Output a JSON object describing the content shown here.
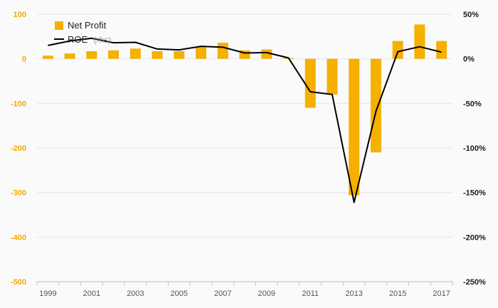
{
  "chart_data": {
    "type": "bar",
    "x": [
      1999,
      2000,
      2001,
      2002,
      2003,
      2004,
      2005,
      2006,
      2007,
      2008,
      2009,
      2010,
      2011,
      2012,
      2013,
      2014,
      2015,
      2016,
      2017
    ],
    "series": [
      {
        "name": "Net Profit",
        "type": "bar",
        "axis": "left",
        "color": "#f5b000",
        "values": [
          7,
          12,
          17,
          19,
          23,
          17,
          17,
          26,
          36,
          19,
          21,
          2,
          -110,
          -80,
          -306,
          -210,
          40,
          77,
          40
        ]
      },
      {
        "name": "ROE",
        "name_suffix": "(rhs)",
        "type": "line",
        "axis": "right",
        "color": "#000000",
        "values": [
          15,
          20,
          23,
          18,
          18.5,
          11,
          10,
          14,
          13,
          6.5,
          7,
          1,
          -37,
          -40,
          -161,
          -59,
          8,
          13.5,
          7.5
        ]
      }
    ],
    "left_axis": {
      "ylim": [
        -500,
        100
      ],
      "ticks": [
        100,
        0,
        -100,
        -200,
        -300,
        -400,
        -500
      ],
      "tick_labels": [
        "100",
        "0",
        "-100",
        "-200",
        "-300",
        "-400",
        "-500"
      ],
      "color": "#f5a800"
    },
    "right_axis": {
      "ylim": [
        -250,
        50
      ],
      "ticks": [
        50,
        0,
        -50,
        -100,
        -150,
        -200,
        -250
      ],
      "tick_labels": [
        "50%",
        "0%",
        "-50%",
        "-100%",
        "-150%",
        "-200%",
        "-250%"
      ],
      "color": "#1a1a1a"
    },
    "x_tick_labels": [
      "1999",
      "2001",
      "2003",
      "2005",
      "2007",
      "2009",
      "2011",
      "2013",
      "2015",
      "2017"
    ],
    "grid": true,
    "legend_position": "top-left"
  }
}
